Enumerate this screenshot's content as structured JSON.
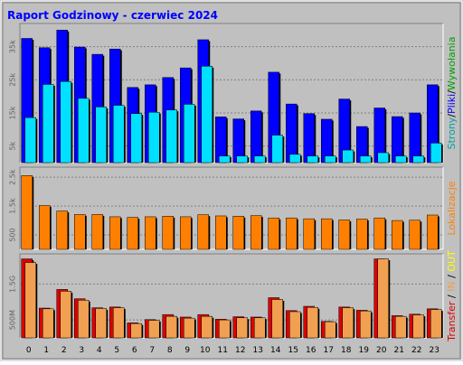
{
  "title": "Raport Godzinowy -  czerwiec 2024",
  "colors": {
    "background": "#c0c0c0",
    "title": "#0000ff",
    "hits": "#0000ff",
    "files": "#00e0ff",
    "pages": "#00ffff",
    "visits": "#ff8000",
    "volume": "#dd0000",
    "in": "#f0a050",
    "out": "#ffc000",
    "label_pages": "#00a0a0",
    "label_files": "#0000ff",
    "label_hits": "#00a000",
    "label_visits": "#ff8000",
    "label_transfer": "#dd0000",
    "label_in": "#f0a050",
    "label_out": "#ffff00"
  },
  "chart_data": [
    {
      "type": "bar",
      "categories": [
        "0",
        "1",
        "2",
        "3",
        "4",
        "5",
        "6",
        "7",
        "8",
        "9",
        "10",
        "11",
        "12",
        "13",
        "14",
        "15",
        "16",
        "17",
        "18",
        "19",
        "20",
        "21",
        "22",
        "23"
      ],
      "y_ticks": [
        "5k",
        "15k",
        "25k",
        "35k"
      ],
      "y_tick_values": [
        5000,
        15000,
        25000,
        35000
      ],
      "ylim": [
        0,
        42000
      ],
      "side_label": [
        {
          "text": "Strony",
          "color": "#00a0a0"
        },
        {
          "text": "/",
          "color": "#000000"
        },
        {
          "text": "Pliki",
          "color": "#0000ff"
        },
        {
          "text": "/",
          "color": "#000000"
        },
        {
          "text": "Wywołania",
          "color": "#00a000"
        }
      ],
      "series": [
        {
          "name": "Wywołania",
          "color": "#0000ff",
          "values": [
            37500,
            34700,
            40000,
            34900,
            32700,
            34300,
            22700,
            23500,
            25700,
            28600,
            37100,
            13800,
            13200,
            15600,
            27300,
            17700,
            14800,
            13100,
            19200,
            10900,
            16500,
            13900,
            15000,
            23500
          ]
        },
        {
          "name": "Pliki",
          "color": "#00e0ff",
          "values": [
            13600,
            23600,
            24500,
            19400,
            16800,
            17300,
            14800,
            15200,
            15900,
            17600,
            29100,
            2000,
            2000,
            2000,
            8300,
            2500,
            2000,
            2000,
            3800,
            2000,
            3000,
            2000,
            2000,
            5900
          ]
        }
      ]
    },
    {
      "type": "bar",
      "categories": [
        "0",
        "1",
        "2",
        "3",
        "4",
        "5",
        "6",
        "7",
        "8",
        "9",
        "10",
        "11",
        "12",
        "13",
        "14",
        "15",
        "16",
        "17",
        "18",
        "19",
        "20",
        "21",
        "22",
        "23"
      ],
      "y_ticks": [
        "500",
        "1.5k",
        "2.5k"
      ],
      "y_tick_values": [
        500,
        1500,
        2500
      ],
      "ylim": [
        0,
        2850
      ],
      "side_label": [
        {
          "text": "Lokalizacje",
          "color": "#ff8000"
        }
      ],
      "series": [
        {
          "name": "Lokalizacje",
          "color": "#ff8000",
          "values": [
            2560,
            1520,
            1330,
            1210,
            1210,
            1130,
            1110,
            1130,
            1150,
            1130,
            1200,
            1160,
            1150,
            1170,
            1090,
            1090,
            1060,
            1060,
            1020,
            1050,
            1090,
            1000,
            1010,
            1190
          ]
        }
      ]
    },
    {
      "type": "bar",
      "categories": [
        "0",
        "1",
        "2",
        "3",
        "4",
        "5",
        "6",
        "7",
        "8",
        "9",
        "10",
        "11",
        "12",
        "13",
        "14",
        "15",
        "16",
        "17",
        "18",
        "19",
        "20",
        "21",
        "22",
        "23"
      ],
      "y_ticks": [
        "500M",
        "1.5G"
      ],
      "y_tick_values": [
        500,
        1500
      ],
      "ylim": [
        0,
        2340
      ],
      "side_label": [
        {
          "text": "Transfer",
          "color": "#dd0000"
        },
        {
          "text": " / ",
          "color": "#000000"
        },
        {
          "text": "IN",
          "color": "#f0a050"
        },
        {
          "text": " / ",
          "color": "#000000"
        },
        {
          "text": "OUT",
          "color": "#ffff00"
        }
      ],
      "series": [
        {
          "name": "Transfer",
          "color": "#dd0000",
          "values": [
            2200,
            830,
            1350,
            1090,
            840,
            860,
            420,
            510,
            650,
            580,
            650,
            520,
            590,
            580,
            1120,
            760,
            880,
            460,
            860,
            770,
            2200,
            620,
            660,
            810
          ]
        },
        {
          "name": "IN",
          "color": "#f0a050",
          "values": [
            2100,
            810,
            1300,
            1050,
            820,
            840,
            400,
            490,
            600,
            550,
            600,
            500,
            560,
            560,
            1070,
            730,
            850,
            450,
            840,
            750,
            2200,
            600,
            640,
            790
          ]
        }
      ]
    }
  ]
}
